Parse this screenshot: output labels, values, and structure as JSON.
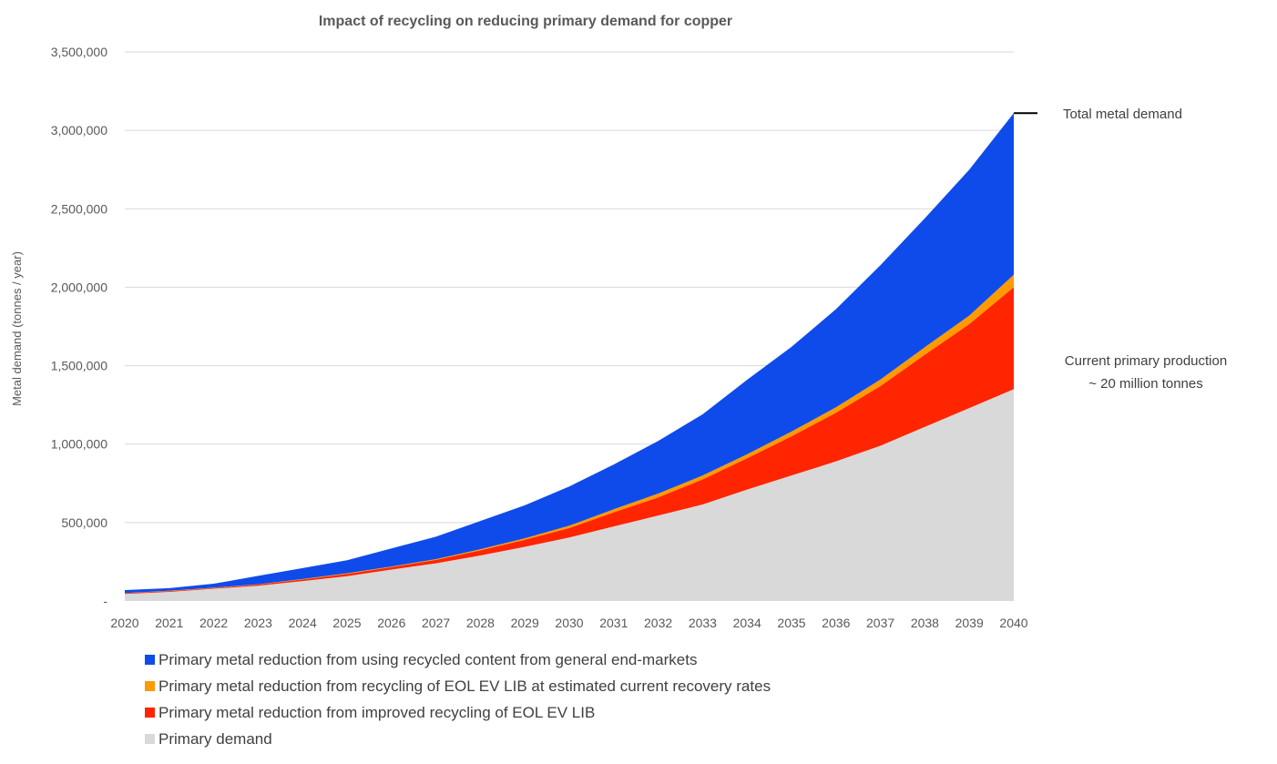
{
  "chart_data": {
    "type": "area",
    "stacked": true,
    "title": "Impact of recycling on reducing primary demand for copper",
    "ylabel": "Metal demand (tonnes / year)",
    "xlabel": "",
    "ylim": [
      0,
      3500000
    ],
    "y_ticks": [
      0,
      500000,
      1000000,
      1500000,
      2000000,
      2500000,
      3000000,
      3500000
    ],
    "y_tick_labels": [
      "-",
      "500,000",
      "1,000,000",
      "1,500,000",
      "2,000,000",
      "2,500,000",
      "3,000,000",
      "3,500,000"
    ],
    "grid": true,
    "legend_position": "bottom",
    "categories": [
      "2020",
      "2021",
      "2022",
      "2023",
      "2024",
      "2025",
      "2026",
      "2027",
      "2028",
      "2029",
      "2030",
      "2031",
      "2032",
      "2033",
      "2034",
      "2035",
      "2036",
      "2037",
      "2038",
      "2039",
      "2040"
    ],
    "series": [
      {
        "name": "Primary demand",
        "color": "#d9d9d9",
        "values": [
          45000,
          58000,
          78000,
          97000,
          127000,
          158000,
          200000,
          240000,
          290000,
          345000,
          405000,
          475000,
          545000,
          615000,
          710000,
          800000,
          890000,
          990000,
          1110000,
          1230000,
          1350000
        ]
      },
      {
        "name": "Primary metal reduction from improved recycling of EOL EV LIB",
        "color": "#ff2500",
        "values": [
          5000,
          5000,
          5000,
          8000,
          10000,
          15000,
          16000,
          22000,
          33000,
          45000,
          60000,
          90000,
          115000,
          160000,
          200000,
          250000,
          310000,
          380000,
          460000,
          535000,
          650000
        ]
      },
      {
        "name": "Primary metal reduction from recycling of EOL EV LIB at estimated current recovery rates",
        "color": "#ff9a00",
        "values": [
          1000,
          2000,
          2000,
          2000,
          3000,
          4000,
          4000,
          5000,
          7000,
          10000,
          15000,
          20000,
          25000,
          25000,
          25000,
          30000,
          35000,
          42000,
          48000,
          55000,
          80000
        ]
      },
      {
        "name": "Primary metal reduction from using recycled content from general end-markets",
        "color": "#0f4bea",
        "values": [
          19000,
          17000,
          25000,
          53000,
          70000,
          83000,
          115000,
          143000,
          180000,
          210000,
          250000,
          285000,
          335000,
          390000,
          475000,
          540000,
          625000,
          728000,
          822000,
          930000,
          1030000
        ]
      }
    ],
    "annotations": [
      {
        "text": "Total metal demand",
        "x": "2040",
        "y": 3110000
      },
      {
        "text_lines": [
          "Current primary production",
          "~ 20 million tonnes"
        ],
        "x": "2040",
        "y_range": [
          1270000,
          1690000
        ]
      }
    ]
  },
  "legend": {
    "items": [
      {
        "label": "Primary metal reduction from using recycled content from general end-markets",
        "color": "#0f4bea"
      },
      {
        "label": "Primary metal reduction from recycling of EOL EV LIB at estimated current recovery rates",
        "color": "#ff9a00"
      },
      {
        "label": "Primary metal reduction from improved recycling of EOL EV LIB",
        "color": "#ff2500"
      },
      {
        "label": "Primary demand",
        "color": "#d9d9d9"
      }
    ]
  }
}
